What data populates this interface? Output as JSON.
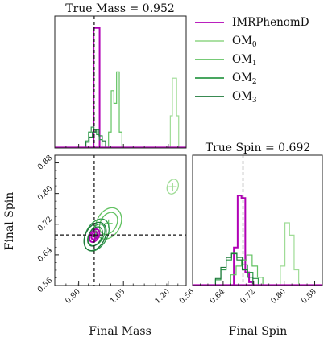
{
  "chart_data": [
    {
      "panel": "top-left",
      "type": "histogram",
      "title": "True Mass = 0.952",
      "xlabel": "",
      "ylabel": "",
      "xlim": [
        0.82,
        1.26
      ],
      "truth_x": 0.952,
      "series": [
        {
          "name": "IMRPhenomD",
          "color": "#b000b5",
          "bins": [
            [
              0.95,
              0.96,
              0.95
            ],
            [
              0.96,
              0.97,
              0.95
            ]
          ]
        },
        {
          "name": "OM_0",
          "color": "#9fdc96",
          "bins": [
            [
              1.207,
              1.214,
              0.25
            ],
            [
              1.214,
              1.221,
              0.55
            ],
            [
              1.221,
              1.228,
              0.55
            ],
            [
              1.228,
              1.235,
              0.25
            ]
          ]
        },
        {
          "name": "OM_1",
          "color": "#62c262",
          "bins": [
            [
              1.0,
              1.009,
              0.12
            ],
            [
              1.009,
              1.018,
              0.45
            ],
            [
              1.018,
              1.027,
              0.35
            ],
            [
              1.027,
              1.036,
              0.6
            ],
            [
              1.036,
              1.045,
              0.12
            ]
          ]
        },
        {
          "name": "OM_2",
          "color": "#2f9a4a",
          "bins": [
            [
              0.924,
              0.933,
              0.05
            ],
            [
              0.933,
              0.942,
              0.12
            ],
            [
              0.942,
              0.951,
              0.16
            ],
            [
              0.951,
              0.96,
              0.14
            ],
            [
              0.96,
              0.969,
              0.1
            ],
            [
              0.969,
              0.978,
              0.06
            ]
          ]
        },
        {
          "name": "OM_3",
          "color": "#1d7a3a",
          "bins": [
            [
              0.924,
              0.935,
              0.04
            ],
            [
              0.935,
              0.946,
              0.08
            ],
            [
              0.946,
              0.957,
              0.12
            ],
            [
              0.957,
              0.968,
              0.14
            ],
            [
              0.968,
              0.979,
              0.09
            ],
            [
              0.979,
              0.99,
              0.05
            ]
          ]
        }
      ]
    },
    {
      "panel": "bottom-left",
      "type": "contour",
      "title": "",
      "xlabel": "Final Mass",
      "ylabel": "Final Spin",
      "xlim": [
        0.82,
        1.26
      ],
      "ylim": [
        0.56,
        0.9
      ],
      "xticks": [
        0.9,
        1.05,
        1.2
      ],
      "xtick_labels": [
        "0.90",
        "1.05",
        "1.20"
      ],
      "yticks": [
        0.56,
        0.64,
        0.72,
        0.8,
        0.88
      ],
      "ytick_labels": [
        "0.56",
        "0.64",
        "0.72",
        "0.80",
        "0.88"
      ],
      "truth_x": 0.952,
      "truth_y": 0.692,
      "series": [
        {
          "name": "OM_0",
          "color": "#9fdc96",
          "center": [
            1.215,
            0.818
          ],
          "contours": [
            [
              0.02,
              0.022
            ]
          ]
        },
        {
          "name": "OM_1",
          "color": "#62c262",
          "center": [
            1.0,
            0.722
          ],
          "contours": [
            [
              0.03,
              0.034
            ],
            [
              0.044,
              0.048
            ]
          ]
        },
        {
          "name": "OM_2",
          "color": "#2f9a4a",
          "center": [
            0.96,
            0.692
          ],
          "contours": [
            [
              0.026,
              0.034
            ],
            [
              0.04,
              0.05
            ]
          ]
        },
        {
          "name": "OM_3",
          "color": "#1d7a3a",
          "center": [
            0.955,
            0.688
          ],
          "contours": [
            [
              0.024,
              0.03
            ],
            [
              0.036,
              0.044
            ]
          ]
        },
        {
          "name": "IMRPhenomD",
          "color": "#b000b5",
          "center": [
            0.953,
            0.69
          ],
          "contours": [
            [
              0.01,
              0.012
            ],
            [
              0.016,
              0.02
            ]
          ]
        }
      ]
    },
    {
      "panel": "bottom-right",
      "type": "histogram",
      "title": "True Spin = 0.692",
      "xlabel": "Final Spin",
      "ylabel": "",
      "xlim": [
        0.56,
        0.9
      ],
      "xticks": [
        0.56,
        0.64,
        0.72,
        0.8,
        0.88
      ],
      "xtick_labels": [
        "0.56",
        "0.64",
        "0.72",
        "0.80",
        "0.88"
      ],
      "truth_x": 0.692,
      "series": [
        {
          "name": "IMRPhenomD",
          "color": "#b000b5",
          "bins": [
            [
              0.668,
              0.678,
              0.3
            ],
            [
              0.678,
              0.688,
              0.72
            ],
            [
              0.688,
              0.698,
              0.7
            ],
            [
              0.698,
              0.708,
              0.1
            ],
            [
              0.708,
              0.718,
              0.02
            ]
          ]
        },
        {
          "name": "OM_0",
          "color": "#9fdc96",
          "bins": [
            [
              0.79,
              0.802,
              0.15
            ],
            [
              0.802,
              0.814,
              0.5
            ],
            [
              0.814,
              0.826,
              0.4
            ],
            [
              0.826,
              0.838,
              0.12
            ]
          ]
        },
        {
          "name": "OM_1",
          "color": "#62c262",
          "bins": [
            [
              0.66,
              0.674,
              0.08
            ],
            [
              0.674,
              0.688,
              0.15
            ],
            [
              0.688,
              0.702,
              0.2
            ],
            [
              0.702,
              0.716,
              0.24
            ],
            [
              0.716,
              0.73,
              0.15
            ],
            [
              0.73,
              0.744,
              0.06
            ]
          ]
        },
        {
          "name": "OM_2",
          "color": "#2f9a4a",
          "bins": [
            [
              0.62,
              0.634,
              0.04
            ],
            [
              0.634,
              0.648,
              0.12
            ],
            [
              0.648,
              0.662,
              0.2
            ],
            [
              0.662,
              0.676,
              0.26
            ],
            [
              0.676,
              0.69,
              0.22
            ],
            [
              0.69,
              0.704,
              0.16
            ],
            [
              0.704,
              0.718,
              0.1
            ],
            [
              0.718,
              0.732,
              0.05
            ]
          ]
        },
        {
          "name": "OM_3",
          "color": "#1d7a3a",
          "bins": [
            [
              0.62,
              0.634,
              0.05
            ],
            [
              0.634,
              0.648,
              0.14
            ],
            [
              0.648,
              0.662,
              0.22
            ],
            [
              0.662,
              0.676,
              0.25
            ],
            [
              0.676,
              0.69,
              0.2
            ],
            [
              0.69,
              0.704,
              0.12
            ],
            [
              0.704,
              0.718,
              0.06
            ]
          ]
        }
      ]
    }
  ],
  "legend": {
    "placement": "top-right",
    "items": [
      {
        "base": "IMRPhenomD",
        "sub": "",
        "color": "#b000b5"
      },
      {
        "base": "OM",
        "sub": "0",
        "color": "#9fdc96"
      },
      {
        "base": "OM",
        "sub": "1",
        "color": "#62c262"
      },
      {
        "base": "OM",
        "sub": "2",
        "color": "#2f9a4a"
      },
      {
        "base": "OM",
        "sub": "3",
        "color": "#1d7a3a"
      }
    ]
  }
}
